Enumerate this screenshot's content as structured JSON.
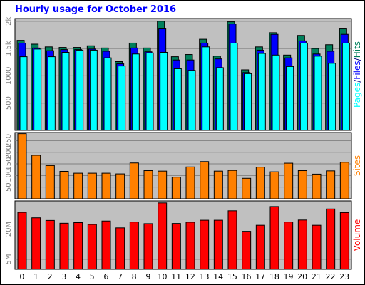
{
  "title": "Hourly usage for October 2016",
  "colors": {
    "background": "#ffffff",
    "panel": "#c0c0c0",
    "grid": "#808080",
    "hits": "#00805c",
    "files": "#0000ff",
    "pages": "#00ffff",
    "sites": "#ff8000",
    "volume": "#ff0000"
  },
  "chart_data": [
    {
      "type": "bar",
      "panel": "usage",
      "categories": [
        "0",
        "1",
        "2",
        "3",
        "4",
        "5",
        "6",
        "7",
        "8",
        "9",
        "10",
        "11",
        "12",
        "13",
        "14",
        "15",
        "16",
        "17",
        "18",
        "19",
        "20",
        "21",
        "22",
        "23"
      ],
      "series": [
        {
          "name": "Hits",
          "values": [
            1650,
            1580,
            1530,
            1520,
            1520,
            1550,
            1510,
            1260,
            1600,
            1510,
            2000,
            1350,
            1390,
            1670,
            1360,
            1990,
            1110,
            1530,
            1790,
            1380,
            1740,
            1500,
            1570,
            1860
          ]
        },
        {
          "name": "Files",
          "values": [
            1600,
            1510,
            1460,
            1480,
            1480,
            1490,
            1450,
            1220,
            1510,
            1440,
            1860,
            1290,
            1290,
            1600,
            1310,
            1950,
            1060,
            1470,
            1760,
            1330,
            1640,
            1400,
            1450,
            1760
          ]
        },
        {
          "name": "Pages",
          "values": [
            1350,
            1490,
            1350,
            1430,
            1470,
            1470,
            1330,
            1180,
            1400,
            1420,
            1430,
            1130,
            1100,
            1530,
            1150,
            1600,
            1040,
            1410,
            1380,
            1170,
            1600,
            1360,
            1230,
            1600
          ]
        }
      ],
      "yticks": [
        "500",
        "1000",
        "1.5k",
        "2k"
      ],
      "ylim": [
        0,
        2050
      ],
      "ylabel": "Pages/Files/Hits",
      "grid": true
    },
    {
      "type": "bar",
      "panel": "sites",
      "categories": [
        "0",
        "1",
        "2",
        "3",
        "4",
        "5",
        "6",
        "7",
        "8",
        "9",
        "10",
        "11",
        "12",
        "13",
        "14",
        "15",
        "16",
        "17",
        "18",
        "19",
        "20",
        "21",
        "22",
        "23"
      ],
      "series": [
        {
          "name": "Sites",
          "values": [
            280,
            187,
            143,
            118,
            110,
            110,
            110,
            107,
            154,
            121,
            119,
            93,
            137,
            160,
            119,
            122,
            88,
            136,
            116,
            153,
            121,
            106,
            120,
            157
          ]
        }
      ],
      "yticks": [
        "50",
        "100",
        "150",
        "200",
        "250"
      ],
      "ylim": [
        0,
        285
      ],
      "ylabel": "Sites",
      "grid": true
    },
    {
      "type": "bar",
      "panel": "volume",
      "categories": [
        "0",
        "1",
        "2",
        "3",
        "4",
        "5",
        "6",
        "7",
        "8",
        "9",
        "10",
        "11",
        "12",
        "13",
        "14",
        "15",
        "16",
        "17",
        "18",
        "19",
        "20",
        "21",
        "22",
        "23"
      ],
      "series": [
        {
          "name": "Volume",
          "values": [
            28.3,
            25.6,
            24.3,
            22.9,
            23.2,
            22.3,
            24.0,
            20.6,
            23.5,
            22.7,
            33.0,
            22.8,
            23.4,
            24.4,
            24.4,
            29.1,
            18.9,
            21.9,
            31.2,
            23.5,
            24.5,
            21.9,
            30.0,
            28.2
          ]
        }
      ],
      "yticks": [
        "5M",
        "20M"
      ],
      "ylim": [
        0,
        34
      ],
      "ylabel": "Volume",
      "grid": true
    }
  ]
}
